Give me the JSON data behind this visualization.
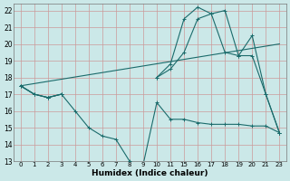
{
  "xlabel": "Humidex (Indice chaleur)",
  "xlim": [
    -0.5,
    19.5
  ],
  "ylim": [
    13,
    22.4
  ],
  "yticks": [
    13,
    14,
    15,
    16,
    17,
    18,
    19,
    20,
    21,
    22
  ],
  "xtick_labels": [
    "0",
    "1",
    "2",
    "3",
    "4",
    "5",
    "6",
    "7",
    "8",
    "9",
    "10",
    "11",
    "15",
    "16",
    "17",
    "18",
    "19",
    "20",
    "21",
    "23"
  ],
  "bg_color": "#cbe8e8",
  "line_color": "#1a6b6b",
  "grid_color": "#cc9999",
  "series1_y": [
    17.5,
    17.0,
    16.8,
    17.0,
    16.0,
    15.0,
    14.5,
    14.3,
    13.0,
    12.8,
    16.5,
    15.5,
    15.5,
    15.3,
    15.2,
    15.2,
    15.2,
    15.1,
    15.1,
    14.7
  ],
  "series2_y": [
    17.5,
    17.0,
    16.8,
    17.0,
    null,
    null,
    null,
    null,
    null,
    null,
    18.0,
    18.8,
    21.5,
    22.2,
    21.8,
    22.0,
    19.3,
    20.5,
    17.0,
    14.7
  ],
  "series3_y": [
    17.5,
    17.0,
    16.8,
    17.0,
    null,
    null,
    null,
    null,
    null,
    null,
    18.0,
    18.5,
    19.5,
    21.5,
    21.8,
    19.5,
    19.3,
    19.3,
    17.0,
    14.7
  ],
  "series4_y": [
    17.5,
    null,
    null,
    null,
    null,
    null,
    null,
    null,
    null,
    null,
    null,
    null,
    null,
    null,
    null,
    null,
    null,
    null,
    null,
    20.0
  ]
}
